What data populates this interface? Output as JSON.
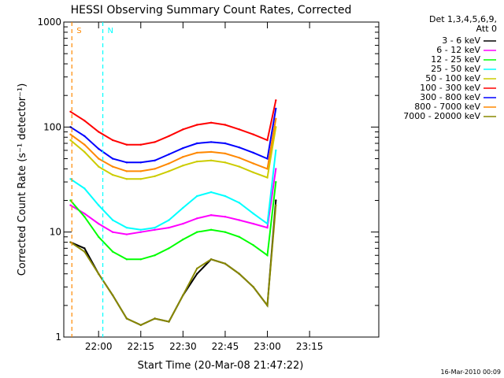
{
  "chart_data": {
    "type": "line",
    "title": "HESSI Observing Summary Count Rates, Corrected",
    "xlabel": "Start Time (20-Mar-08 21:47:22)",
    "ylabel": "Corrected Count Rate (s⁻¹ detector⁻¹)",
    "yscale": "log",
    "ylim": [
      1,
      1000
    ],
    "xlim_minutes": [
      -12.37,
      99.6
    ],
    "x_ticks": [
      {
        "label": "22:00",
        "m": 0
      },
      {
        "label": "22:15",
        "m": 15
      },
      {
        "label": "22:30",
        "m": 30
      },
      {
        "label": "22:45",
        "m": 45
      },
      {
        "label": "23:00",
        "m": 60
      },
      {
        "label": "23:15",
        "m": 75
      }
    ],
    "y_ticks": [
      {
        "label": "1",
        "v": 1
      },
      {
        "label": "10",
        "v": 10
      },
      {
        "label": "100",
        "v": 100
      },
      {
        "label": "1000",
        "v": 1000
      }
    ],
    "legend_header": [
      "Det 1,3,4,5,6,9,",
      "Att 0"
    ],
    "series": [
      {
        "name": "3 - 6 keV",
        "color": "#000000",
        "x": [
          -10,
          -5,
          0,
          5,
          10,
          15,
          20,
          25,
          30,
          35,
          40,
          45,
          50,
          55,
          60,
          63
        ],
        "y": [
          8,
          7,
          4,
          2.5,
          1.5,
          1.3,
          1.5,
          1.4,
          2.5,
          4,
          5.5,
          5,
          4,
          3,
          2,
          20
        ]
      },
      {
        "name": "6 - 12 keV",
        "color": "#ff00ff",
        "x": [
          -10,
          -5,
          0,
          5,
          10,
          15,
          20,
          25,
          30,
          35,
          40,
          45,
          50,
          55,
          60,
          63
        ],
        "y": [
          18,
          15,
          12,
          10,
          9.5,
          10,
          10.5,
          11,
          12,
          13.5,
          14.5,
          14,
          13,
          12,
          11,
          40
        ]
      },
      {
        "name": "12 - 25 keV",
        "color": "#00ff00",
        "x": [
          -10,
          -5,
          0,
          5,
          10,
          15,
          20,
          25,
          30,
          35,
          40,
          45,
          50,
          55,
          60,
          63
        ],
        "y": [
          20,
          14,
          9,
          6.5,
          5.5,
          5.5,
          6,
          7,
          8.5,
          10,
          10.5,
          10,
          9,
          7.5,
          6,
          30
        ]
      },
      {
        "name": "25 - 50 keV",
        "color": "#00ffff",
        "x": [
          -10,
          -5,
          0,
          5,
          10,
          15,
          20,
          25,
          30,
          35,
          40,
          45,
          50,
          55,
          60,
          63
        ],
        "y": [
          32,
          26,
          18,
          13,
          11,
          10.5,
          11,
          13,
          17,
          22,
          24,
          22,
          19,
          15,
          12,
          60
        ]
      },
      {
        "name": "50 - 100 keV",
        "color": "#cccc00",
        "x": [
          -10,
          -5,
          0,
          5,
          10,
          15,
          20,
          25,
          30,
          35,
          40,
          45,
          50,
          55,
          60,
          63
        ],
        "y": [
          75,
          58,
          42,
          35,
          32,
          32,
          34,
          38,
          43,
          47,
          48,
          46,
          42,
          37,
          33,
          100
        ]
      },
      {
        "name": "100 - 300 keV",
        "color": "#ff0000",
        "x": [
          -10,
          -5,
          0,
          5,
          10,
          15,
          20,
          25,
          30,
          35,
          40,
          45,
          50,
          55,
          60,
          63
        ],
        "y": [
          140,
          115,
          90,
          75,
          68,
          68,
          72,
          82,
          95,
          105,
          110,
          105,
          95,
          85,
          75,
          180
        ]
      },
      {
        "name": "300 - 800 keV",
        "color": "#0000ff",
        "x": [
          -10,
          -5,
          0,
          5,
          10,
          15,
          20,
          25,
          30,
          35,
          40,
          45,
          50,
          55,
          60,
          63
        ],
        "y": [
          100,
          82,
          62,
          50,
          46,
          46,
          48,
          55,
          63,
          70,
          72,
          70,
          64,
          57,
          50,
          150
        ]
      },
      {
        "name": "800 - 7000 keV",
        "color": "#ff8800",
        "x": [
          -10,
          -5,
          0,
          5,
          10,
          15,
          20,
          25,
          30,
          35,
          40,
          45,
          50,
          55,
          60,
          63
        ],
        "y": [
          85,
          68,
          50,
          42,
          38,
          38,
          40,
          45,
          52,
          57,
          58,
          56,
          51,
          45,
          40,
          120
        ]
      },
      {
        "name": "7000 - 20000 keV",
        "color": "#888800",
        "x": [
          -10,
          -5,
          0,
          5,
          10,
          15,
          20,
          25,
          30,
          35,
          40,
          45,
          50,
          55,
          60,
          63
        ],
        "y": [
          8,
          6.5,
          4,
          2.5,
          1.5,
          1.3,
          1.5,
          1.4,
          2.5,
          4.5,
          5.5,
          5,
          4,
          3,
          2,
          18
        ]
      }
    ],
    "annotations": [
      {
        "label": "S",
        "color": "#ff8800",
        "m": -9.5
      },
      {
        "label": "N",
        "color": "#00ffff",
        "m": 1.5
      }
    ],
    "timestamp": "16-Mar-2010 00:09"
  }
}
